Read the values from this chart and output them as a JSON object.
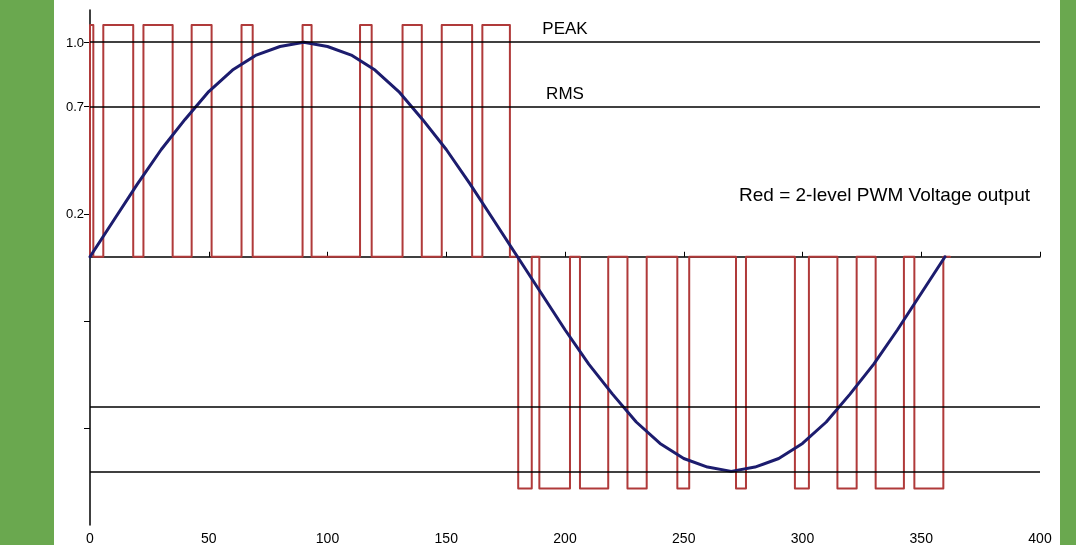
{
  "chart_data": {
    "type": "line",
    "annotations": [
      "Red = 2-level PWM Voltage output"
    ],
    "xlim": [
      0,
      400
    ],
    "xticks": [
      0,
      50,
      100,
      150,
      200,
      250,
      300,
      350,
      400
    ],
    "ylim": [
      -1.25,
      1.15
    ],
    "yticks": [
      {
        "value": 0.2,
        "label": "0.2"
      },
      {
        "value": 0.7,
        "label": "0.7"
      },
      {
        "value": 1,
        "label": "1.0"
      },
      {
        "value": -0.3,
        "label": null
      },
      {
        "value": -0.8,
        "label": null
      }
    ],
    "grid": false,
    "marker": "none",
    "line_style": "solid",
    "ref_lines": [
      {
        "axis": "y",
        "value": 1,
        "label": "PEAK"
      },
      {
        "axis": "y",
        "value": 0.7,
        "label": "RMS"
      },
      {
        "axis": "y",
        "value": -0.7,
        "label": null
      },
      {
        "axis": "y",
        "value": -1,
        "label": null
      }
    ],
    "series": [
      {
        "type": "step",
        "color": "#b03a3a",
        "x": [
          0,
          1.4,
          5.6,
          18.2,
          22.5,
          34.8,
          42.8,
          51.2,
          63.8,
          68.5,
          89.5,
          93.3,
          113.7,
          118.6,
          131.6,
          139.7,
          148.1,
          160.9,
          165.2,
          176.8,
          180.3,
          186.0,
          189.2,
          202.1,
          206.3,
          218.2,
          226.3,
          234.4,
          247.3,
          252.3,
          272.0,
          276.2,
          296.8,
          302.7,
          314.7,
          322.8,
          330.8,
          342.7,
          347.1,
          359.3,
          362.1
        ],
        "values": [
          0,
          1.08,
          0,
          1.08,
          0,
          1.08,
          0,
          1.08,
          0,
          1.08,
          0,
          1.08,
          0,
          1.08,
          0,
          1.08,
          0,
          1.08,
          0,
          1.08,
          0,
          -1.08,
          0,
          -1.08,
          0,
          -1.08,
          0,
          -1.08,
          0,
          -1.08,
          0,
          -1.08,
          0,
          -1.08,
          0,
          -1.08,
          0,
          -1.08,
          0,
          -1.08,
          0
        ]
      },
      {
        "color": "#1c1c6e",
        "x": [
          0,
          10,
          20,
          30,
          40,
          50,
          60,
          70,
          80,
          90,
          100,
          110,
          120,
          130,
          140,
          150,
          160,
          170,
          180,
          190,
          200,
          210,
          220,
          230,
          240,
          250,
          260,
          270,
          280,
          290,
          300,
          310,
          320,
          330,
          340,
          350,
          360
        ],
        "values": [
          0,
          0.17,
          0.34,
          0.5,
          0.64,
          0.77,
          0.87,
          0.94,
          0.98,
          1,
          0.98,
          0.94,
          0.87,
          0.77,
          0.64,
          0.5,
          0.34,
          0.17,
          0,
          -0.17,
          -0.34,
          -0.5,
          -0.64,
          -0.77,
          -0.87,
          -0.94,
          -0.98,
          -1,
          -0.98,
          -0.94,
          -0.87,
          -0.77,
          -0.64,
          -0.5,
          -0.34,
          -0.17,
          0
        ]
      }
    ]
  }
}
